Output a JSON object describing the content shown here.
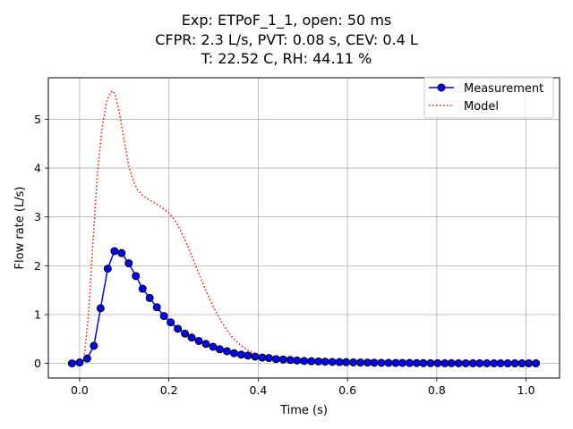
{
  "chart_data": {
    "type": "line",
    "title_lines": [
      "Exp: ETPoF_1_1, open: 50 ms",
      "CFPR: 2.3 L/s, PVT: 0.08 s, CEV: 0.4 L",
      "T: 22.52 C, RH: 44.11 %"
    ],
    "xlabel": "Time (s)",
    "ylabel": "Flow rate (L/s)",
    "xlim": [
      -0.07,
      1.075
    ],
    "ylim": [
      -0.3,
      5.85
    ],
    "xticks": [
      0.0,
      0.2,
      0.4,
      0.6,
      0.8,
      1.0
    ],
    "xtick_labels": [
      "0.0",
      "0.2",
      "0.4",
      "0.6",
      "0.8",
      "1.0"
    ],
    "yticks": [
      0,
      1,
      2,
      3,
      4,
      5
    ],
    "ytick_labels": [
      "0",
      "1",
      "2",
      "3",
      "4",
      "5"
    ],
    "grid": true,
    "legend_position": "top-right",
    "series": [
      {
        "name": "Measurement",
        "style": "solid line with circle markers",
        "color": "#0000ff",
        "marker_face": "#0000ff",
        "marker_edge": "#000000",
        "x": [
          -0.017,
          0.0,
          0.017,
          0.032,
          0.047,
          0.063,
          0.078,
          0.094,
          0.11,
          0.126,
          0.141,
          0.157,
          0.173,
          0.189,
          0.204,
          0.22,
          0.236,
          0.251,
          0.267,
          0.283,
          0.299,
          0.314,
          0.33,
          0.346,
          0.362,
          0.377,
          0.393,
          0.409,
          0.424,
          0.44,
          0.456,
          0.472,
          0.487,
          0.503,
          0.519,
          0.535,
          0.55,
          0.566,
          0.582,
          0.597,
          0.613,
          0.629,
          0.645,
          0.66,
          0.676,
          0.692,
          0.708,
          0.723,
          0.739,
          0.755,
          0.77,
          0.786,
          0.802,
          0.818,
          0.833,
          0.849,
          0.865,
          0.881,
          0.896,
          0.912,
          0.928,
          0.943,
          0.959,
          0.975,
          0.991,
          1.006,
          1.022
        ],
        "y": [
          0.0,
          0.02,
          0.1,
          0.36,
          1.13,
          1.94,
          2.3,
          2.26,
          2.05,
          1.79,
          1.53,
          1.34,
          1.15,
          0.97,
          0.84,
          0.71,
          0.61,
          0.53,
          0.46,
          0.4,
          0.34,
          0.29,
          0.25,
          0.21,
          0.18,
          0.16,
          0.14,
          0.12,
          0.11,
          0.09,
          0.08,
          0.07,
          0.06,
          0.05,
          0.045,
          0.04,
          0.035,
          0.03,
          0.027,
          0.024,
          0.021,
          0.018,
          0.016,
          0.014,
          0.012,
          0.011,
          0.01,
          0.009,
          0.008,
          0.007,
          0.006,
          0.005,
          0.005,
          0.004,
          0.004,
          0.003,
          0.003,
          0.003,
          0.002,
          0.002,
          0.002,
          0.002,
          0.001,
          0.001,
          0.001,
          0.001,
          0.001
        ]
      },
      {
        "name": "Model",
        "style": "dotted line",
        "color": "#ff0000",
        "x": [
          0.0,
          0.01,
          0.02,
          0.03,
          0.04,
          0.05,
          0.06,
          0.07,
          0.075,
          0.08,
          0.09,
          0.1,
          0.11,
          0.12,
          0.13,
          0.14,
          0.15,
          0.16,
          0.17,
          0.18,
          0.19,
          0.2,
          0.21,
          0.22,
          0.23,
          0.24,
          0.25,
          0.26,
          0.27,
          0.28,
          0.29,
          0.3,
          0.31,
          0.32,
          0.33,
          0.34,
          0.35,
          0.36,
          0.37,
          0.38,
          0.39,
          0.4,
          0.42,
          0.44,
          0.46,
          0.48,
          0.5,
          0.55,
          0.6,
          0.7,
          0.8,
          0.9,
          1.0,
          1.02
        ],
        "y": [
          0.0,
          0.1,
          1.0,
          2.5,
          3.9,
          4.8,
          5.35,
          5.55,
          5.58,
          5.5,
          5.1,
          4.55,
          4.05,
          3.75,
          3.55,
          3.45,
          3.38,
          3.33,
          3.28,
          3.22,
          3.15,
          3.08,
          2.97,
          2.83,
          2.65,
          2.45,
          2.23,
          2.0,
          1.78,
          1.55,
          1.35,
          1.15,
          0.98,
          0.82,
          0.68,
          0.56,
          0.46,
          0.38,
          0.31,
          0.25,
          0.2,
          0.16,
          0.11,
          0.07,
          0.05,
          0.03,
          0.02,
          0.01,
          0.005,
          0.0,
          0.0,
          0.0,
          0.0,
          0.0
        ]
      }
    ]
  }
}
